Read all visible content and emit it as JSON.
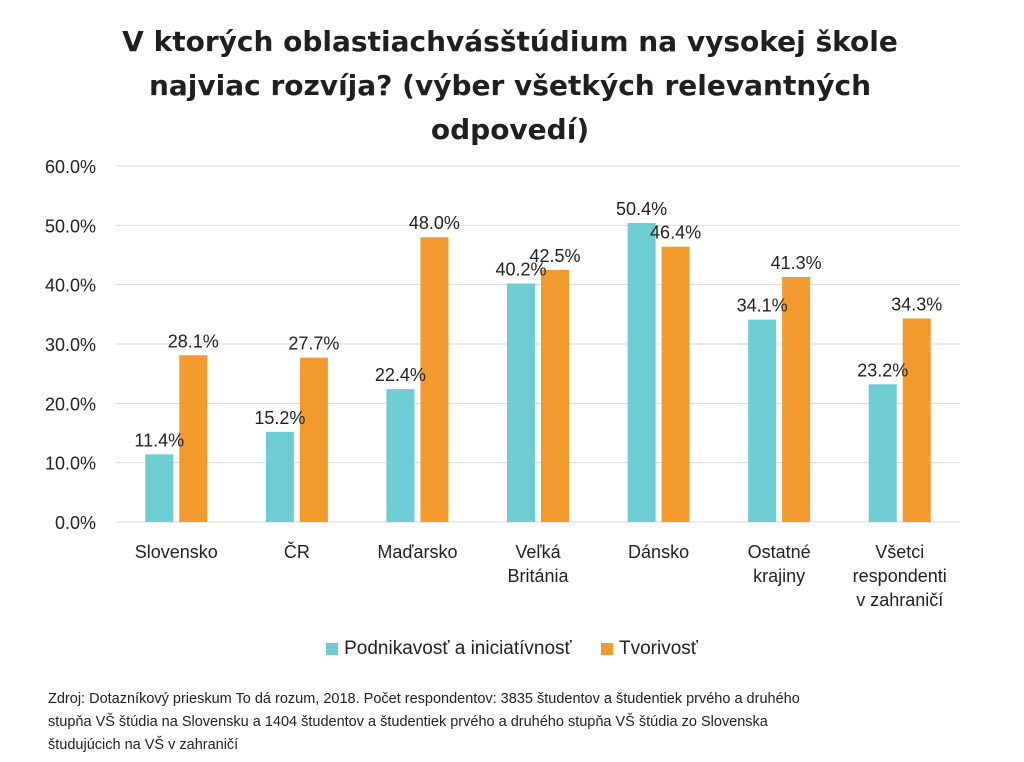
{
  "chart_data": {
    "type": "bar",
    "title_lines": [
      "V ktorých oblastiachvásštúdium na vysokej škole",
      "najviac rozvíja? (výber všetkých relevantných",
      "odpovedí)"
    ],
    "categories": [
      [
        "Slovensko"
      ],
      [
        "ČR"
      ],
      [
        "Maďarsko"
      ],
      [
        "Veľká",
        "Británia"
      ],
      [
        "Dánsko"
      ],
      [
        "Ostatné",
        "krajiny"
      ],
      [
        "Všetci",
        "respondenti",
        "v zahraničí"
      ]
    ],
    "series": [
      {
        "name": "Podnikavosť a iniciatívnosť",
        "color": "#6DCDD3",
        "values": [
          11.4,
          15.2,
          22.4,
          40.2,
          50.4,
          34.1,
          23.2
        ],
        "labels": [
          "11.4%",
          "15.2%",
          "22.4%",
          "40.2%",
          "50.4%",
          "34.1%",
          "23.2%"
        ]
      },
      {
        "name": "Tvorivosť",
        "color": "#F39A2E",
        "values": [
          28.1,
          27.7,
          48.0,
          42.5,
          46.4,
          41.3,
          34.3
        ],
        "labels": [
          "28.1%",
          "27.7%",
          "48.0%",
          "42.5%",
          "46.4%",
          "41.3%",
          "34.3%"
        ]
      }
    ],
    "y_ticks": [
      "0.0%",
      "10.0%",
      "20.0%",
      "30.0%",
      "40.0%",
      "50.0%",
      "60.0%"
    ],
    "ylim": [
      0,
      60
    ],
    "grid": true,
    "legend_position": "bottom"
  },
  "source": [
    "Zdroj: Dotazníkový prieskum To dá rozum, 2018. Počet respondentov: 3835 študentov a študentiek prvého a druhého",
    "stupňa VŠ štúdia na Slovensku a 1404 študentov a študentiek prvého a druhého stupňa VŠ štúdia zo Slovenska",
    "študujúcich na VŠ v zahraničí"
  ]
}
